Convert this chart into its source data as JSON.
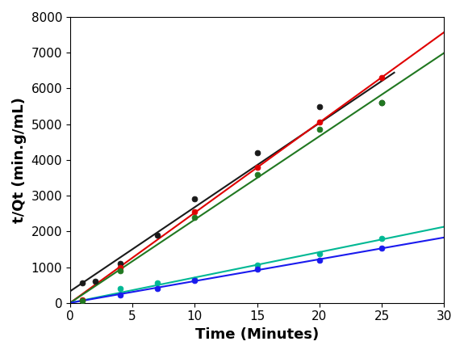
{
  "title": "",
  "xlabel": "Time (Minutes)",
  "ylabel": "t/Qt (min.g/mL)",
  "xlim": [
    0,
    30
  ],
  "ylim": [
    0,
    8000
  ],
  "yticks": [
    0,
    1000,
    2000,
    3000,
    4000,
    5000,
    6000,
    7000,
    8000
  ],
  "xticks": [
    0,
    5,
    10,
    15,
    20,
    25,
    30
  ],
  "series": [
    {
      "name": "Black",
      "color": "#1a1a1a",
      "marker": "o",
      "markersize": 5,
      "x_data": [
        1,
        2,
        4,
        7,
        10,
        15,
        20,
        25
      ],
      "y_data": [
        560,
        610,
        1100,
        1900,
        2900,
        4200,
        5500,
        5600
      ],
      "fit_xmin": 0,
      "fit_xmax": 26,
      "use_intercept": true
    },
    {
      "name": "Red",
      "color": "#e00000",
      "marker": "o",
      "markersize": 5,
      "x_data": [
        1,
        4,
        10,
        15,
        20,
        25
      ],
      "y_data": [
        80,
        1000,
        2550,
        3800,
        5050,
        6300
      ],
      "fit_xmin": 0,
      "fit_xmax": 30,
      "use_intercept": false
    },
    {
      "name": "DarkGreen",
      "color": "#217821",
      "marker": "o",
      "markersize": 5,
      "x_data": [
        1,
        4,
        10,
        15,
        20,
        25
      ],
      "y_data": [
        60,
        900,
        2400,
        3600,
        4850,
        5600
      ],
      "fit_xmin": 0,
      "fit_xmax": 30,
      "use_intercept": false
    },
    {
      "name": "Teal",
      "color": "#00b894",
      "marker": "o",
      "markersize": 5,
      "x_data": [
        4,
        7,
        10,
        15,
        20,
        25
      ],
      "y_data": [
        400,
        570,
        650,
        1050,
        1380,
        1800
      ],
      "fit_xmin": 0,
      "fit_xmax": 30,
      "use_intercept": false
    },
    {
      "name": "Blue",
      "color": "#1a1aee",
      "marker": "o",
      "markersize": 5,
      "x_data": [
        4,
        7,
        10,
        15,
        20,
        25
      ],
      "y_data": [
        220,
        390,
        620,
        950,
        1200,
        1530
      ],
      "fit_xmin": 0,
      "fit_xmax": 30,
      "use_intercept": false
    }
  ],
  "background_color": "#ffffff",
  "grid": false,
  "xlabel_fontsize": 13,
  "ylabel_fontsize": 13,
  "tick_fontsize": 11
}
